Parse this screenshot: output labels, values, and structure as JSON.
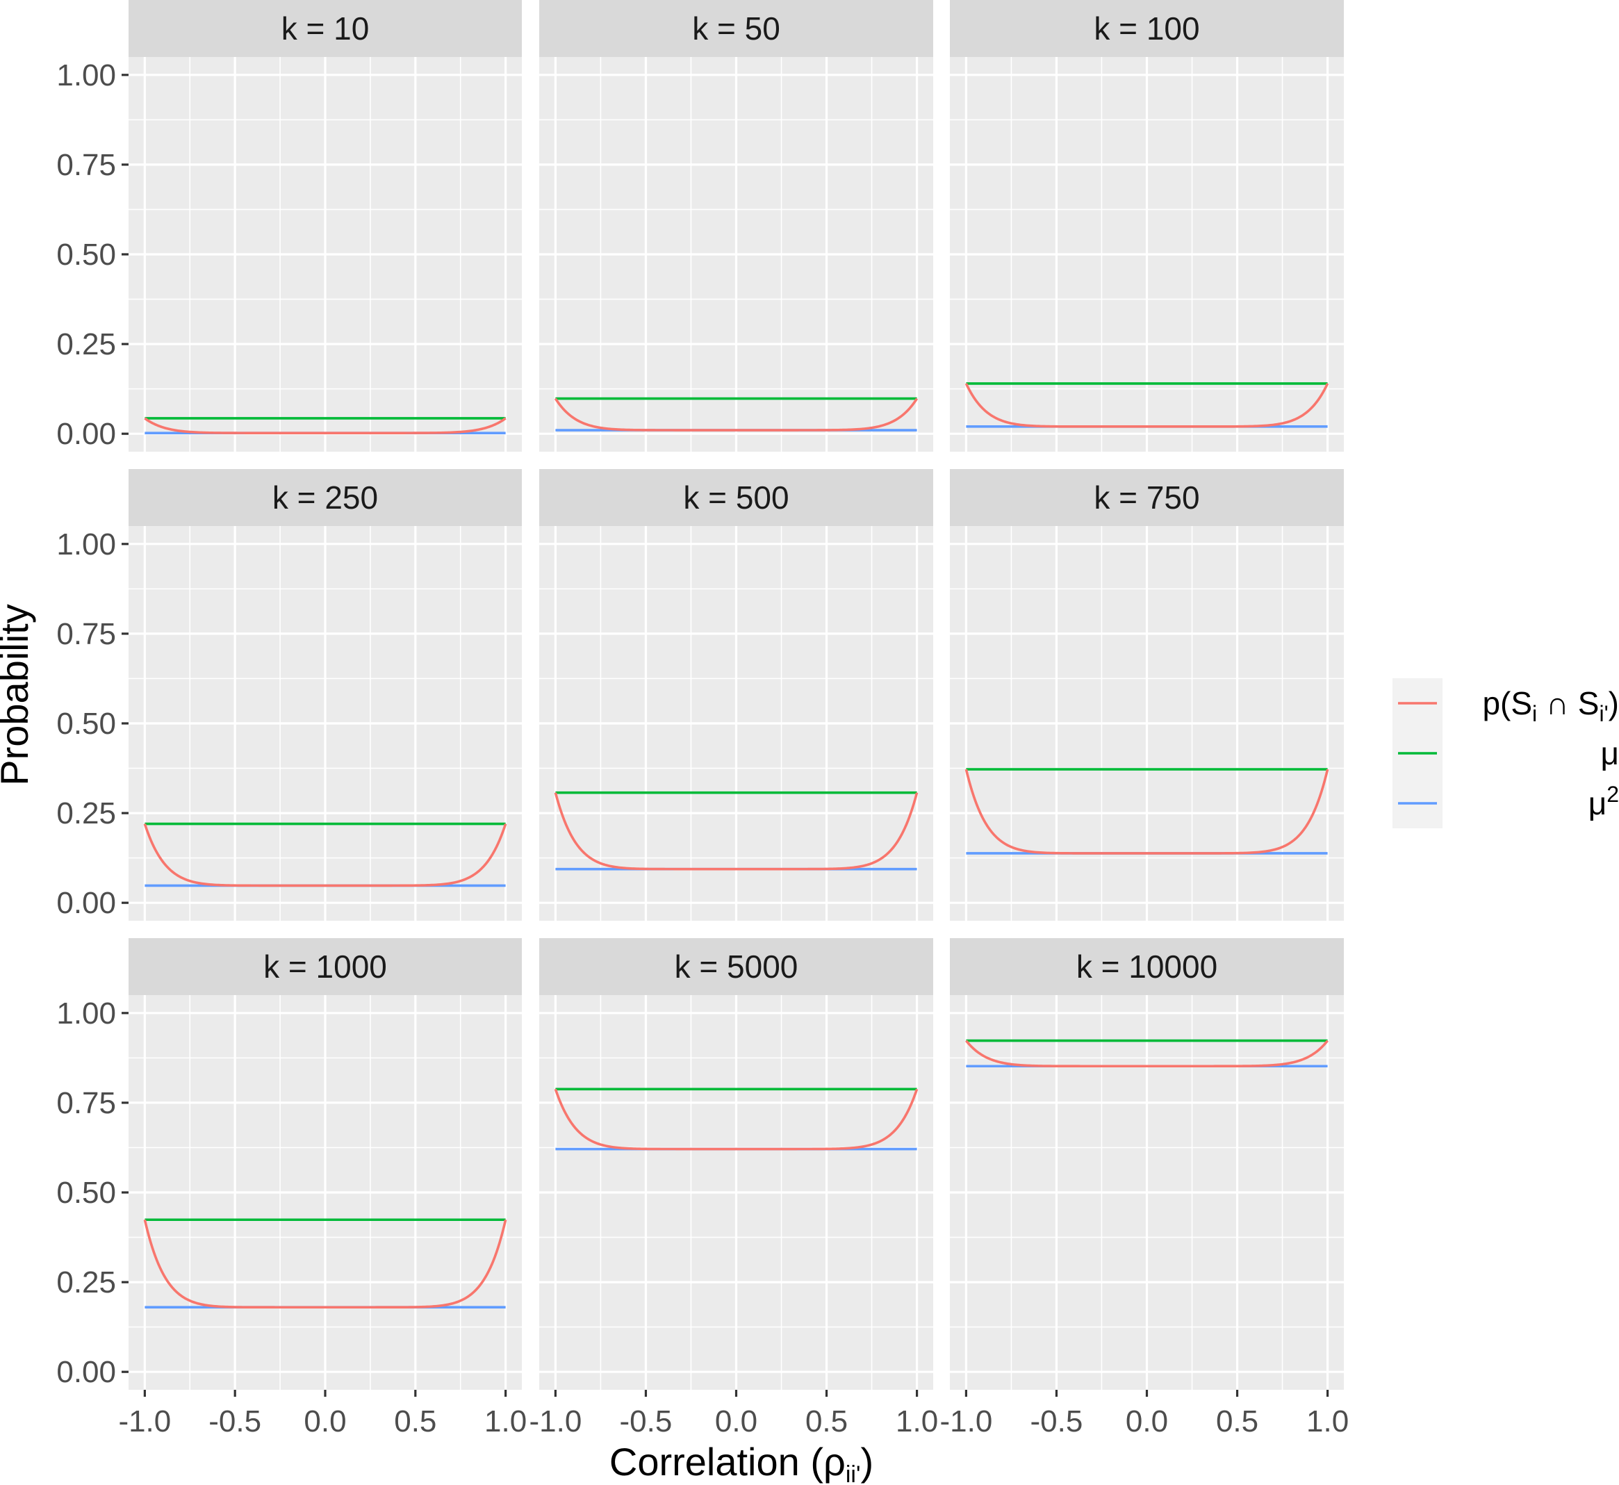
{
  "chart_data": {
    "type": "line",
    "facet_by": "k",
    "xlabel": "Correlation (ρ",
    "xlabel_sub": "ii'",
    "xlabel_close": ")",
    "ylabel": "Probability",
    "xlim": [
      -1.0,
      1.0
    ],
    "ylim": [
      0.0,
      1.0
    ],
    "x_ticks": [
      "-1.0",
      "-0.5",
      "0.0",
      "0.5",
      "1.0"
    ],
    "y_ticks": [
      "0.00",
      "0.25",
      "0.50",
      "0.75",
      "1.00"
    ],
    "grid": true,
    "legend_position": "right",
    "legend": [
      {
        "key": "p",
        "label_main": "p(S",
        "label_sub1": "i",
        "label_mid": " ∩ S",
        "label_sub2": "i'",
        "label_close": ")",
        "color": "#f8766d"
      },
      {
        "key": "mu",
        "label_main": "μ",
        "label_sup": "",
        "color": "#00ba38"
      },
      {
        "key": "mu2",
        "label_main": "μ",
        "label_sup": "2",
        "color": "#619cff"
      }
    ],
    "panels": [
      {
        "label": "k = 10",
        "mu": 0.043,
        "mu2": 0.002
      },
      {
        "label": "k = 50",
        "mu": 0.098,
        "mu2": 0.01
      },
      {
        "label": "k = 100",
        "mu": 0.14,
        "mu2": 0.02
      },
      {
        "label": "k = 250",
        "mu": 0.22,
        "mu2": 0.048
      },
      {
        "label": "k = 500",
        "mu": 0.307,
        "mu2": 0.094
      },
      {
        "label": "k = 750",
        "mu": 0.372,
        "mu2": 0.138
      },
      {
        "label": "k = 1000",
        "mu": 0.424,
        "mu2": 0.18
      },
      {
        "label": "k = 5000",
        "mu": 0.788,
        "mu2": 0.621
      },
      {
        "label": "k = 10000",
        "mu": 0.923,
        "mu2": 0.852
      }
    ]
  }
}
